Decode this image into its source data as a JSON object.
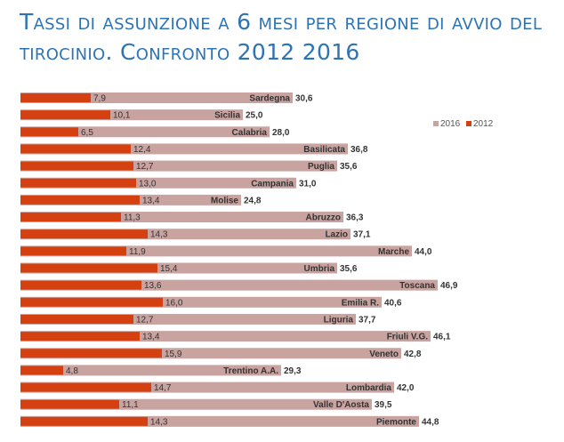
{
  "title": "Tassi di assunzione a 6 mesi per regione di avvio del tirocinio. Confronto 2012 2016",
  "colors": {
    "s2012": "#d4400f",
    "s2016": "#c8a3a0",
    "title": "#2e74b5"
  },
  "chart_data": {
    "type": "bar",
    "orientation": "horizontal",
    "categories": [
      "Sardegna",
      "Sicilia",
      "Calabria",
      "Basilicata",
      "Puglia",
      "Campania",
      "Molise",
      "Abruzzo",
      "Lazio",
      "Marche",
      "Umbria",
      "Toscana",
      "Emilia R.",
      "Liguria",
      "Friuli V.G.",
      "Veneto",
      "Trentino A.A.",
      "Lombardia",
      "Valle D'Aosta",
      "Piemonte"
    ],
    "series": [
      {
        "name": "2016",
        "values": [
          30.6,
          25.0,
          28.0,
          36.8,
          35.6,
          31.0,
          24.8,
          36.3,
          37.1,
          44.0,
          35.6,
          46.9,
          40.6,
          37.7,
          46.1,
          42.8,
          29.3,
          42.0,
          39.5,
          44.8
        ],
        "labels": [
          "30,6",
          "25,0",
          "28,0",
          "36,8",
          "35,6",
          "31,0",
          "24,8",
          "36,3",
          "37,1",
          "44,0",
          "35,6",
          "46,9",
          "40,6",
          "37,7",
          "46,1",
          "42,8",
          "29,3",
          "42,0",
          "39,5",
          "44,8"
        ]
      },
      {
        "name": "2012",
        "values": [
          7.9,
          10.1,
          6.5,
          12.4,
          12.7,
          13.0,
          13.4,
          11.3,
          14.3,
          11.9,
          15.4,
          13.6,
          16.0,
          12.7,
          13.4,
          15.9,
          4.8,
          14.7,
          11.1,
          14.3
        ],
        "labels": [
          "7,9",
          "10,1",
          "6,5",
          "12,4",
          "12,7",
          "13,0",
          "13,4",
          "11,3",
          "14,3",
          "11,9",
          "15,4",
          "13,6",
          "16,0",
          "12,7",
          "13,4",
          "15,9",
          "4,8",
          "14,7",
          "11,1",
          "14,3"
        ]
      }
    ],
    "legend": [
      "2016",
      "2012"
    ],
    "legend_position": "top-right",
    "grid": false
  }
}
